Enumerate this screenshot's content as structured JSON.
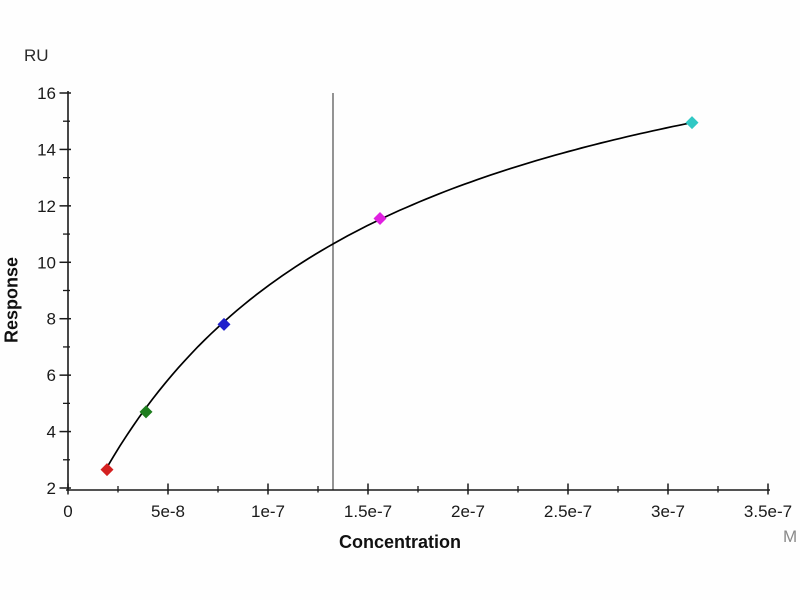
{
  "chart_data": {
    "type": "scatter",
    "title": "",
    "xlabel": "Concentration",
    "x_unit": "M",
    "ylabel": "Response",
    "y_unit": "RU",
    "xlim": [
      0,
      3.5e-07
    ],
    "ylim": [
      2,
      16
    ],
    "grid": false,
    "legend": null,
    "x_ticks": [
      0,
      5e-08,
      1e-07,
      1.5e-07,
      2e-07,
      2.5e-07,
      3e-07,
      3.5e-07
    ],
    "x_tick_labels": [
      "0",
      "5e-8",
      "1e-7",
      "1.5e-7",
      "2e-7",
      "2.5e-7",
      "3e-7",
      "3.5e-7"
    ],
    "x_minor_ticks": [
      2.5e-08,
      7.5e-08,
      1.25e-07,
      1.75e-07,
      2.25e-07,
      2.75e-07,
      3.25e-07
    ],
    "y_ticks": [
      2,
      4,
      6,
      8,
      10,
      12,
      14,
      16
    ],
    "y_tick_labels": [
      "2",
      "4",
      "6",
      "8",
      "10",
      "12",
      "14",
      "16"
    ],
    "y_minor_ticks": [
      3,
      5,
      7,
      9,
      11,
      13,
      15
    ],
    "axis_color": "#1a1a1a",
    "points": [
      {
        "name": "red",
        "x": 1.95e-08,
        "y": 2.65,
        "color": "#d42020"
      },
      {
        "name": "green",
        "x": 3.9e-08,
        "y": 4.7,
        "color": "#1e7d1e"
      },
      {
        "name": "blue",
        "x": 7.8e-08,
        "y": 7.8,
        "color": "#2020cc"
      },
      {
        "name": "magenta",
        "x": 1.56e-07,
        "y": 11.55,
        "color": "#e020e0"
      },
      {
        "name": "cyan",
        "x": 3.12e-07,
        "y": 14.95,
        "color": "#30c8c4"
      }
    ],
    "fit_curve": {
      "model": "langmuir_1to1_steady_state",
      "rmax": 21.3,
      "kd": 1.325e-07,
      "x_start": 1.95e-08,
      "x_end": 3.12e-07,
      "color": "#000000"
    },
    "vline": {
      "x": 1.325e-07,
      "color": "#4d4d4d"
    }
  }
}
